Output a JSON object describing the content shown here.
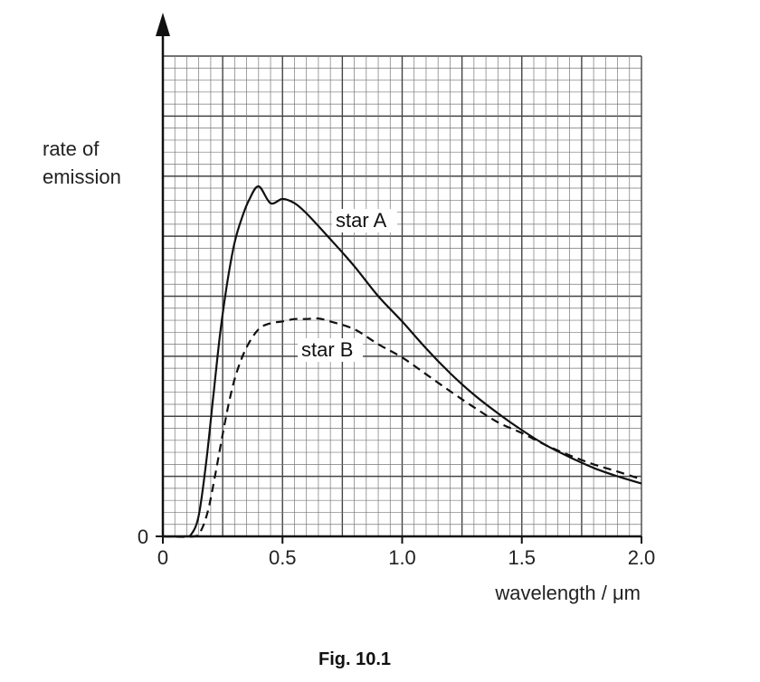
{
  "chart_data": {
    "type": "line",
    "title": "",
    "caption": "Fig. 10.1",
    "xlabel": "wavelength / μm",
    "ylabel_line1": "rate of",
    "ylabel_line2": "emission",
    "xlim": [
      0,
      2.0
    ],
    "ylim": [
      0,
      8
    ],
    "y_zero_label": "0",
    "x_ticks": [
      0,
      0.5,
      1.0,
      1.5,
      2.0
    ],
    "x_tick_labels": [
      "0",
      "0.5",
      "1.0",
      "1.5",
      "2.0"
    ],
    "grid": true,
    "series": [
      {
        "name": "star A",
        "style": "solid",
        "x": [
          0,
          0.09,
          0.12,
          0.15,
          0.18,
          0.21,
          0.24,
          0.27,
          0.3,
          0.33,
          0.36,
          0.4,
          0.45,
          0.5,
          0.55,
          0.6,
          0.7,
          0.8,
          0.9,
          1.0,
          1.1,
          1.2,
          1.3,
          1.4,
          1.5,
          1.6,
          1.7,
          1.8,
          1.9,
          2.0
        ],
        "y": [
          0,
          0,
          0.04,
          0.35,
          1.2,
          2.3,
          3.4,
          4.25,
          4.9,
          5.3,
          5.6,
          5.83,
          5.55,
          5.62,
          5.55,
          5.38,
          4.95,
          4.5,
          4.0,
          3.58,
          3.13,
          2.72,
          2.36,
          2.05,
          1.77,
          1.52,
          1.32,
          1.14,
          1.0,
          0.88
        ]
      },
      {
        "name": "star B",
        "style": "dashed",
        "x": [
          0,
          0.13,
          0.16,
          0.19,
          0.22,
          0.25,
          0.28,
          0.31,
          0.35,
          0.4,
          0.45,
          0.5,
          0.55,
          0.6,
          0.65,
          0.7,
          0.8,
          0.9,
          1.0,
          1.1,
          1.2,
          1.3,
          1.4,
          1.5,
          1.6,
          1.7,
          1.8,
          1.9,
          2.0
        ],
        "y": [
          0,
          0,
          0.1,
          0.45,
          1.05,
          1.7,
          2.3,
          2.75,
          3.15,
          3.45,
          3.55,
          3.58,
          3.62,
          3.62,
          3.63,
          3.58,
          3.45,
          3.2,
          2.98,
          2.7,
          2.42,
          2.15,
          1.9,
          1.72,
          1.52,
          1.35,
          1.2,
          1.08,
          0.95
        ]
      }
    ],
    "annotations": [
      {
        "text": "star A",
        "series": "star A"
      },
      {
        "text": "star B",
        "series": "star B"
      }
    ]
  }
}
